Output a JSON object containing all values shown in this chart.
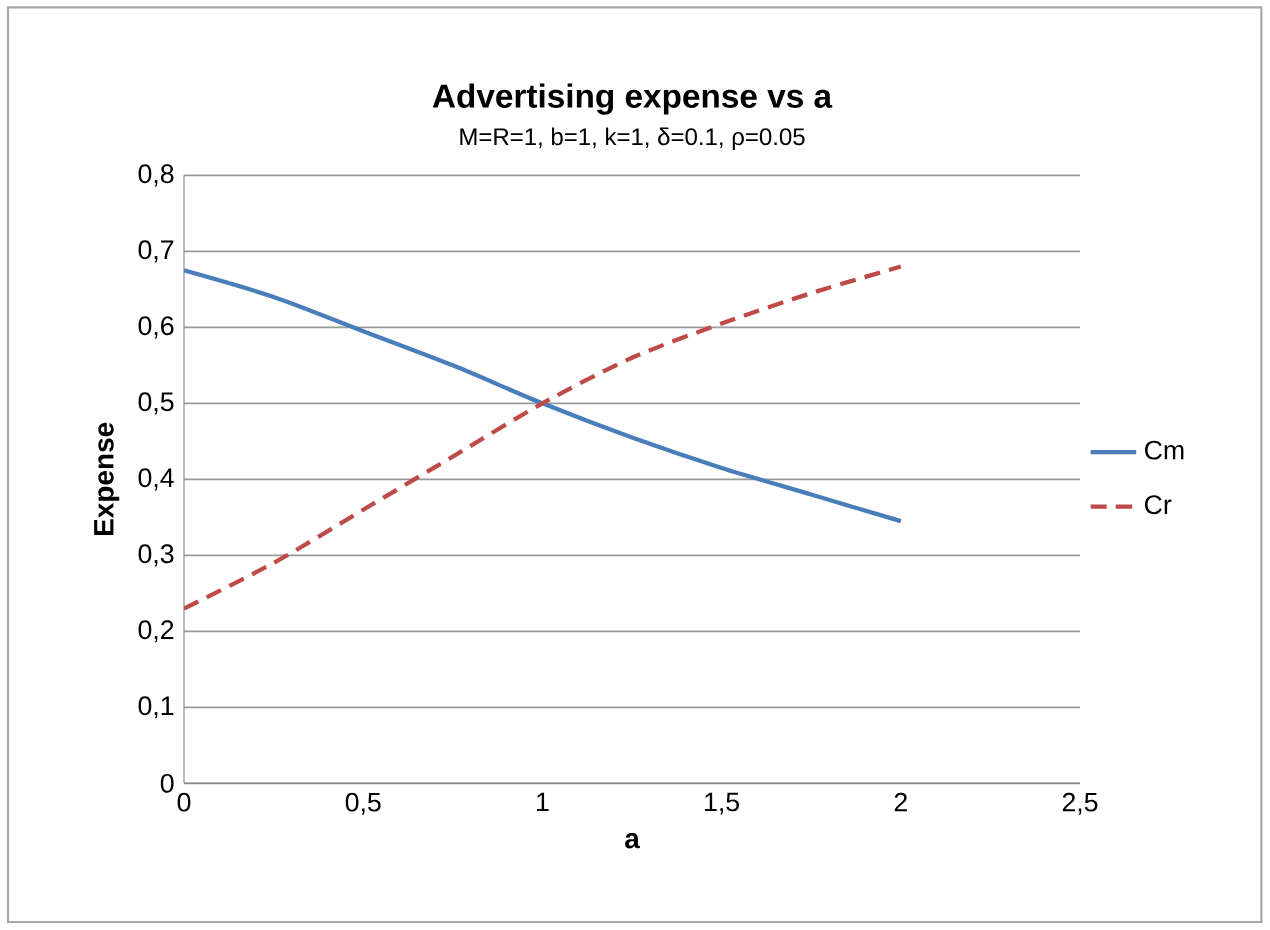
{
  "chart_data": {
    "type": "line",
    "title": "Advertising expense vs a",
    "subtitle": "M=R=1, b=1, k=1, δ=0.1, ρ=0.05",
    "xlabel": "a",
    "ylabel": "Expense",
    "x": [
      0,
      0.25,
      0.5,
      0.75,
      1,
      1.25,
      1.5,
      1.75,
      2
    ],
    "series": [
      {
        "name": "Cm",
        "color": "#4a7ebb",
        "line_style": "solid",
        "values": [
          0.675,
          0.64,
          0.595,
          0.55,
          0.5,
          0.455,
          0.415,
          0.38,
          0.345
        ]
      },
      {
        "name": "Cr",
        "color": "#be4b48",
        "line_style": "dashed",
        "values": [
          0.23,
          0.29,
          0.36,
          0.43,
          0.5,
          0.56,
          0.605,
          0.645,
          0.68
        ]
      }
    ],
    "xlim": [
      0,
      2.5
    ],
    "ylim": [
      0,
      0.8
    ],
    "xticks": [
      0,
      {
        "value": 0.5,
        "label": "0,5"
      },
      1,
      {
        "value": 1.5,
        "label": "1,5"
      },
      2,
      {
        "value": 2.5,
        "label": "2,5"
      }
    ],
    "yticks": [
      0,
      {
        "value": 0.1,
        "label": "0,1"
      },
      {
        "value": 0.2,
        "label": "0,2"
      },
      {
        "value": 0.3,
        "label": "0,3"
      },
      {
        "value": 0.4,
        "label": "0,4"
      },
      {
        "value": 0.5,
        "label": "0,5"
      },
      {
        "value": 0.6,
        "label": "0,6"
      },
      {
        "value": 0.7,
        "label": "0,7"
      },
      {
        "value": 0.8,
        "label": "0,8"
      }
    ],
    "grid": "y",
    "legend": "right",
    "marker": "none"
  }
}
